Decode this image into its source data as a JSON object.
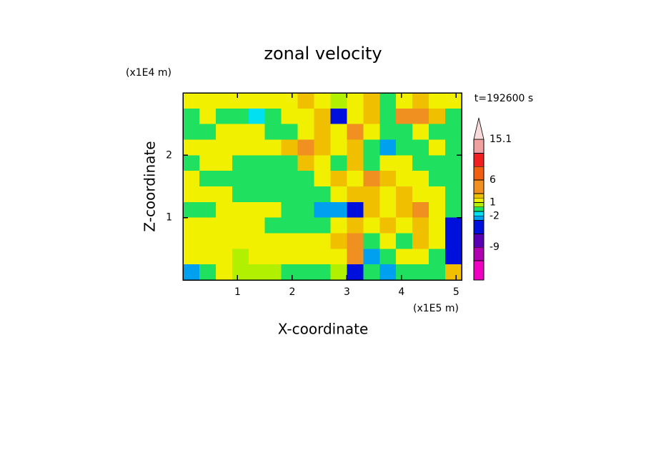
{
  "chart_data": {
    "type": "contour",
    "title": "zonal velocity",
    "xlabel": "X-coordinate",
    "ylabel": "Z-coordinate",
    "x_unit": "(x1E5 m)",
    "y_unit": "(x1E4 m)",
    "time_label": "t=192600 s",
    "xlim": [
      0,
      5.1
    ],
    "ylim": [
      0,
      3
    ],
    "xticks": [
      1,
      2,
      3,
      4,
      5
    ],
    "yticks": [
      1,
      2
    ],
    "x": [
      0.15,
      0.45,
      0.75,
      1.05,
      1.35,
      1.65,
      1.95,
      2.25,
      2.55,
      2.85,
      3.15,
      3.45,
      3.75,
      4.05,
      4.35,
      4.65,
      4.95
    ],
    "y": [
      2.875,
      2.625,
      2.375,
      2.125,
      1.875,
      1.625,
      1.375,
      1.125,
      0.875,
      0.625,
      0.375,
      0.125
    ],
    "z": [
      [
        1.5,
        1.5,
        1.5,
        1.5,
        1.5,
        1.5,
        1.5,
        2.5,
        1.5,
        0.5,
        1.5,
        2.5,
        -0.5,
        1.5,
        2.5,
        1.5,
        1.5
      ],
      [
        -0.5,
        1.5,
        -0.5,
        -0.5,
        -1.5,
        -0.5,
        1.5,
        1.5,
        2.5,
        -4,
        1.5,
        2.5,
        -0.5,
        4,
        4,
        2.5,
        -0.5
      ],
      [
        -0.5,
        -0.5,
        1.5,
        1.5,
        1.5,
        -0.5,
        -0.5,
        1.5,
        2.5,
        1.5,
        4,
        1.5,
        -0.5,
        -0.5,
        1.5,
        -0.5,
        -0.5
      ],
      [
        1.5,
        1.5,
        1.5,
        1.5,
        1.5,
        1.5,
        2.5,
        4,
        2.5,
        1.5,
        2.5,
        -0.5,
        -2.5,
        -0.5,
        -0.5,
        1.5,
        -0.5
      ],
      [
        -0.5,
        1.5,
        1.5,
        -0.5,
        -0.5,
        -0.5,
        -0.5,
        2.5,
        1.5,
        -0.5,
        2.5,
        -0.5,
        1.5,
        1.5,
        -0.5,
        -0.5,
        -0.5
      ],
      [
        1.5,
        -0.5,
        -0.5,
        -0.5,
        -0.5,
        -0.5,
        -0.5,
        -0.5,
        1.5,
        2.5,
        1.5,
        4,
        2.5,
        1.5,
        1.5,
        -0.5,
        -0.5
      ],
      [
        1.5,
        1.5,
        1.5,
        -0.5,
        -0.5,
        -0.5,
        -0.5,
        -0.5,
        -0.5,
        1.5,
        2.5,
        2.5,
        1.5,
        2.5,
        1.5,
        1.5,
        -0.5
      ],
      [
        -0.5,
        -0.5,
        1.5,
        1.5,
        1.5,
        1.5,
        -0.5,
        -0.5,
        -2.5,
        -2.5,
        -4,
        2.5,
        1.5,
        2.5,
        4,
        1.5,
        -0.5
      ],
      [
        1.5,
        1.5,
        1.5,
        1.5,
        1.5,
        -0.5,
        -0.5,
        -0.5,
        -0.5,
        1.5,
        2.5,
        1.5,
        2.5,
        1.5,
        2.5,
        1.5,
        -4
      ],
      [
        1.5,
        1.5,
        1.5,
        1.5,
        1.5,
        1.5,
        1.5,
        1.5,
        1.5,
        2.5,
        4,
        -0.5,
        1.5,
        -0.5,
        2.5,
        1.5,
        -4
      ],
      [
        1.5,
        1.5,
        1.5,
        0.5,
        1.5,
        1.5,
        1.5,
        1.5,
        1.5,
        1.5,
        4,
        -2.5,
        -0.5,
        1.5,
        1.5,
        -0.5,
        -4
      ],
      [
        -2.5,
        -0.5,
        1.5,
        0.5,
        0.5,
        0.5,
        -0.5,
        -0.5,
        -0.5,
        0.5,
        -4,
        -0.5,
        -2.5,
        -0.5,
        -0.5,
        -0.5,
        2.5
      ]
    ],
    "colorbar": {
      "clim": [
        -16.3,
        15.1
      ],
      "levels": [
        -12,
        -9,
        -6,
        -3,
        -2,
        -1,
        0,
        1,
        2,
        3,
        6,
        9,
        12,
        15.1
      ],
      "colors": [
        "#f000c0",
        "#b000b0",
        "#5a00b4",
        "#0010dc",
        "#00a0f0",
        "#00e0f0",
        "#20e060",
        "#b0f000",
        "#f0f000",
        "#f0c000",
        "#f09020",
        "#f06010",
        "#f02020",
        "#f0a0a0",
        "#f8dada"
      ],
      "ticks": [
        15.1,
        6,
        1,
        -2,
        -9
      ]
    }
  }
}
